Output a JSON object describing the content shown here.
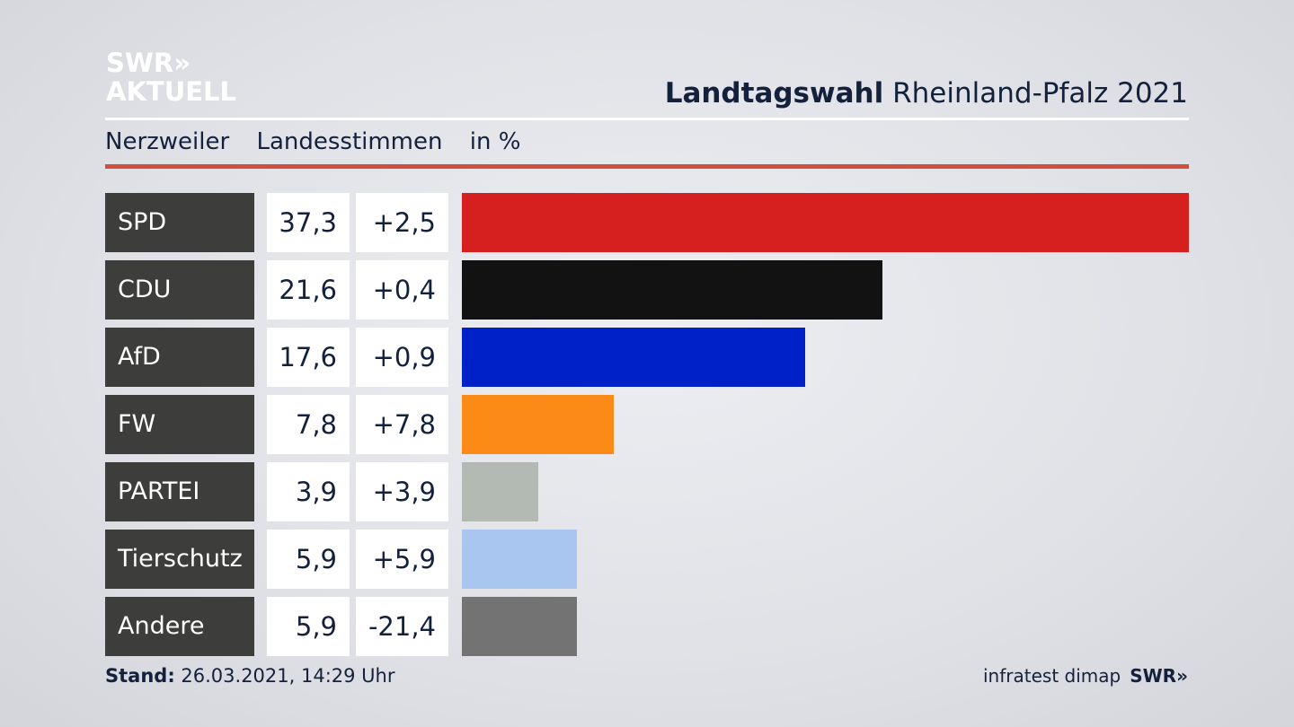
{
  "logo": {
    "line1": "SWR»",
    "line2": "AKTUELL"
  },
  "header": {
    "title_bold": "Landtagswahl",
    "title_rest": " Rheinland-Pfalz 2021"
  },
  "subheader": {
    "place": "Nerzweiler",
    "vote_type": "Landesstimmen",
    "unit": "in %"
  },
  "footer": {
    "stand_label": "Stand:",
    "stand_value": " 26.03.2021, 14:29 Uhr",
    "source": "infratest dimap",
    "brand": "SWR»"
  },
  "chart_data": {
    "type": "bar",
    "orientation": "horizontal",
    "title": "Landtagswahl Rheinland-Pfalz 2021",
    "unit": "in %",
    "categories": [
      "SPD",
      "CDU",
      "AfD",
      "FW",
      "PARTEI",
      "Tierschutz",
      "Andere"
    ],
    "values": [
      37.3,
      21.6,
      17.6,
      7.8,
      3.9,
      5.9,
      5.9
    ],
    "value_labels": [
      "37,3",
      "21,6",
      "17,6",
      "7,8",
      "3,9",
      "5,9",
      "5,9"
    ],
    "diff_labels": [
      "+2,5",
      "+0,4",
      "+0,9",
      "+7,8",
      "+3,9",
      "+5,9",
      "-21,4"
    ],
    "colors": [
      "#d62020",
      "#121212",
      "#0021c8",
      "#fb8a16",
      "#b2bab3",
      "#a8c6f0",
      "#737373"
    ],
    "grid": false,
    "legend": "none"
  }
}
